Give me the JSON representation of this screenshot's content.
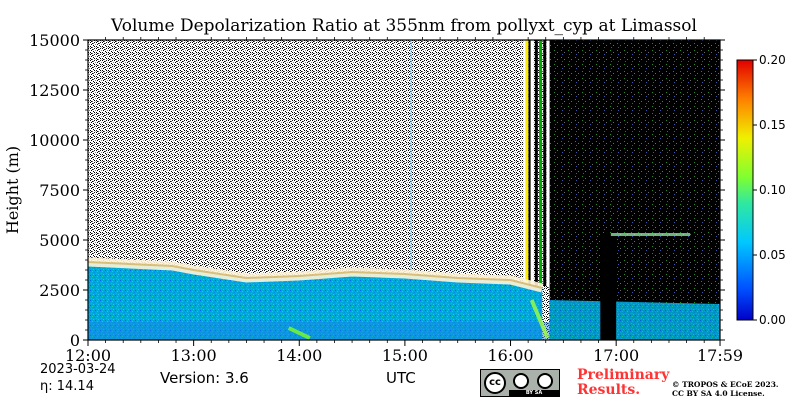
{
  "chart_data": {
    "type": "heatmap",
    "title": "Volume Depolarization Ratio at 355nm from pollyxt_cyp at Limassol",
    "ylabel": "Height (m)",
    "xlabel": "UTC",
    "y_ticks": [
      "0",
      "2500",
      "5000",
      "7500",
      "10000",
      "12500",
      "15000"
    ],
    "ylim": [
      0,
      15000
    ],
    "x_ticks": [
      "12:00",
      "13:00",
      "14:00",
      "15:00",
      "16:00",
      "17:00",
      "17:59"
    ],
    "xlim_hours": [
      12.0,
      17.983
    ],
    "colorbar": {
      "ticks": [
        "0.00",
        "0.05",
        "0.10",
        "0.15",
        "0.20"
      ],
      "range": [
        0.0,
        0.2
      ],
      "colormap": "jet"
    },
    "layers": [
      {
        "name": "boundary_layer_top",
        "hours": [
          12.0,
          12.8,
          13.0,
          13.5,
          14.0,
          14.5,
          15.0,
          15.5,
          16.0,
          16.3
        ],
        "top_m": [
          3900,
          3700,
          3500,
          3100,
          3200,
          3400,
          3300,
          3100,
          3000,
          2600
        ]
      },
      {
        "name": "signal_gap",
        "hours": [
          16.85,
          17.0
        ]
      },
      {
        "name": "dark_region_start",
        "hour": 16.37
      },
      {
        "name": "cloud_layer",
        "hours": [
          16.95,
          17.7
        ],
        "height_m": 5300
      }
    ]
  },
  "footer": {
    "date": "2023-03-24",
    "eta": "η:  14.14",
    "version": "Version: 3.6",
    "utc": "UTC",
    "preliminary_line1": "Preliminary",
    "preliminary_line2": "Results.",
    "license_line1": "© TROPOS & ECoE 2023.",
    "license_line2": "CC BY SA 4.0 License.",
    "cc_text": "cc",
    "cc_strip": "BY   SA"
  },
  "colors": {
    "background_noise": "#000000",
    "boundary_layer": "#00a8d8",
    "aerosol_top": "#ffffff",
    "accent_preliminary": "#ff3333"
  }
}
